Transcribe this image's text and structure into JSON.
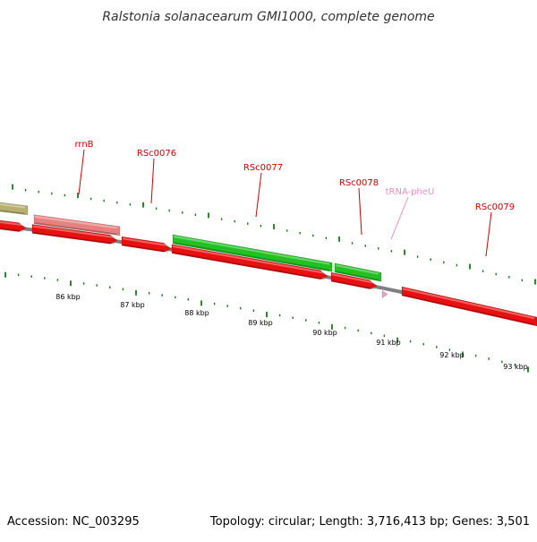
{
  "title": "Ralstonia solanacearum GMI1000, complete genome",
  "footer": {
    "accession": "Accession: NC_003295",
    "summary": "Topology: circular; Length: 3,716,413 bp; Genes: 3,501"
  },
  "colors": {
    "backbone": "#808080",
    "tick": "#1a7a1a",
    "cds_reverse": "#e81010",
    "cds_forward": "#22c022",
    "rrna": "#e88080",
    "trna": "#f0a0d0",
    "other": "#b8b070",
    "label_cds": "#cc0000",
    "label_trna": "#e890c0"
  },
  "scale": {
    "unit": "kbp",
    "labels": [
      "86 kbp",
      "87 kbp",
      "88 kbp",
      "89 kbp",
      "90 kbp",
      "91 kbp",
      "92 kbp",
      "93 kbp"
    ]
  },
  "features": [
    {
      "name": "",
      "type": "other",
      "strand": "+"
    },
    {
      "name": "",
      "type": "cds",
      "strand": "-"
    },
    {
      "name": "rrnB",
      "type": "rrna",
      "strand": "+"
    },
    {
      "name": "",
      "type": "cds",
      "strand": "-"
    },
    {
      "name": "RSc0076",
      "type": "cds",
      "strand": "-"
    },
    {
      "name": "RSc0077",
      "type": "cds",
      "strand": "+"
    },
    {
      "name": "RSc0077",
      "type": "cds",
      "strand": "-"
    },
    {
      "name": "RSc0078",
      "type": "cds",
      "strand": "+"
    },
    {
      "name": "RSc0078",
      "type": "cds",
      "strand": "-"
    },
    {
      "name": "tRNA-pheU",
      "type": "trna",
      "strand": "-"
    },
    {
      "name": "RSc0079",
      "type": "cds",
      "strand": "-"
    }
  ],
  "labels": [
    {
      "text": "rrnB",
      "type": "cds"
    },
    {
      "text": "RSc0076",
      "type": "cds"
    },
    {
      "text": "RSc0077",
      "type": "cds"
    },
    {
      "text": "RSc0078",
      "type": "cds"
    },
    {
      "text": "tRNA-pheU",
      "type": "trna"
    },
    {
      "text": "RSc0079",
      "type": "cds"
    }
  ]
}
